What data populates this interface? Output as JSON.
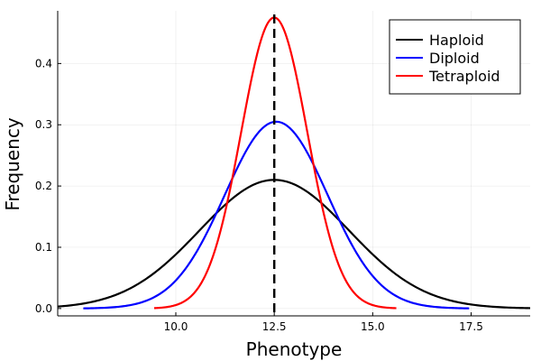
{
  "chart_data": {
    "type": "line",
    "title": "",
    "xlabel": "Phenotype",
    "ylabel": "Frequency",
    "xlim": [
      7.0,
      19.0
    ],
    "ylim": [
      -0.012,
      0.486
    ],
    "x_ticks": [
      10.0,
      12.5,
      15.0,
      17.5
    ],
    "x_tick_labels": [
      "10.0",
      "12.5",
      "15.0",
      "17.5"
    ],
    "y_ticks": [
      0.0,
      0.1,
      0.2,
      0.3,
      0.4
    ],
    "y_tick_labels": [
      "0.0",
      "0.1",
      "0.2",
      "0.3",
      "0.4"
    ],
    "grid": true,
    "legend_position": "top-right",
    "vertical_line": {
      "x": 12.5,
      "style": "dashed",
      "color": "#000000"
    },
    "series": [
      {
        "name": "Haploid",
        "color": "#000000",
        "mean": 12.5,
        "peak": 0.21,
        "sd": 1.9,
        "x_range": [
          7.0,
          19.0
        ]
      },
      {
        "name": "Diploid",
        "color": "#0000ff",
        "mean": 12.55,
        "peak": 0.305,
        "sd": 1.31,
        "x_range": [
          7.65,
          17.45
        ]
      },
      {
        "name": "Tetraploid",
        "color": "#ff0000",
        "mean": 12.5,
        "peak": 0.475,
        "sd": 0.84,
        "x_range": [
          9.45,
          15.6
        ]
      }
    ]
  }
}
